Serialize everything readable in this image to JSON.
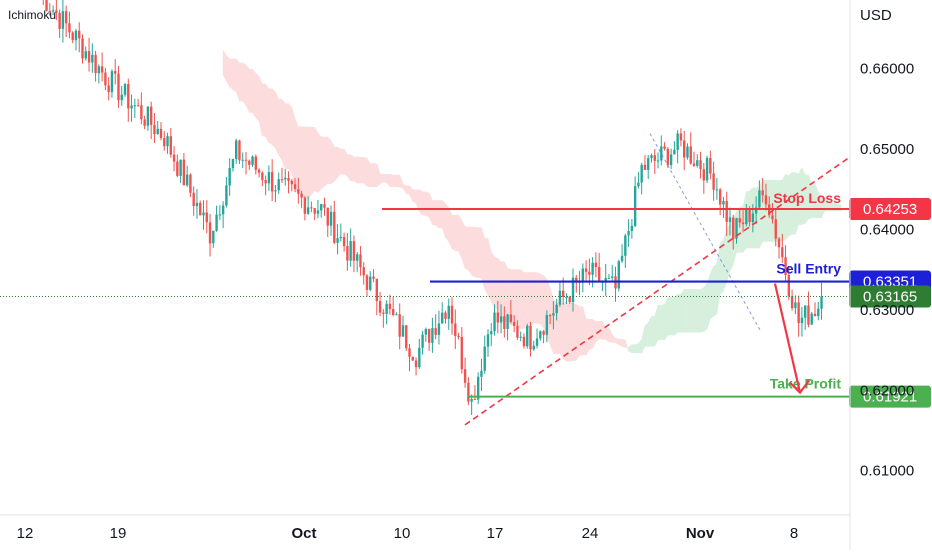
{
  "indicator_label": "Ichimoku",
  "currency": "USD",
  "colors": {
    "up": "#26a69a",
    "down": "#ef5350",
    "sell_entry": "#1e20d8",
    "stop_loss": "#f23645",
    "take_profit": "#4caf50",
    "current": "#2e7d32",
    "cloud_bear": "#fcdcdc",
    "cloud_bull": "#d7efdd"
  },
  "chart_data": {
    "type": "candlestick",
    "symbol_currency": "USD",
    "y_axis": {
      "range": [
        0.6045,
        0.6685
      ],
      "ticks": [
        {
          "value": 0.66,
          "label": "0.66000"
        },
        {
          "value": 0.65,
          "label": "0.65000"
        },
        {
          "value": 0.64,
          "label": "0.64000"
        },
        {
          "value": 0.63,
          "label": "0.63000"
        },
        {
          "value": 0.62,
          "label": "0.62000"
        },
        {
          "value": 0.61,
          "label": "0.61000"
        }
      ]
    },
    "x_axis": {
      "ticks": [
        {
          "label": "12",
          "bold": false
        },
        {
          "label": "19",
          "bold": false
        },
        {
          "label": "Oct",
          "bold": true
        },
        {
          "label": "10",
          "bold": false
        },
        {
          "label": "17",
          "bold": false
        },
        {
          "label": "24",
          "bold": false
        },
        {
          "label": "Nov",
          "bold": true
        },
        {
          "label": "8",
          "bold": false
        }
      ]
    },
    "levels": [
      {
        "name": "Stop Loss",
        "price": 0.64253,
        "label": "0.64253"
      },
      {
        "name": "Sell Entry",
        "price": 0.63351,
        "label": "0.63351"
      },
      {
        "name": "current",
        "price": 0.63165,
        "label": "0.63165"
      },
      {
        "name": "Take Profit",
        "price": 0.61921,
        "label": "0.61921"
      }
    ],
    "anchors": [
      [
        0,
        0.6695
      ],
      [
        20,
        0.659
      ],
      [
        38,
        0.6515
      ],
      [
        52,
        0.6395
      ],
      [
        60,
        0.6495
      ],
      [
        74,
        0.645
      ],
      [
        86,
        0.6425
      ],
      [
        102,
        0.6325
      ],
      [
        115,
        0.6245
      ],
      [
        125,
        0.631
      ],
      [
        132,
        0.6185
      ],
      [
        138,
        0.629
      ],
      [
        150,
        0.6265
      ],
      [
        160,
        0.6315
      ],
      [
        168,
        0.6345
      ],
      [
        176,
        0.6325
      ],
      [
        184,
        0.6475
      ],
      [
        196,
        0.6505
      ],
      [
        206,
        0.6465
      ],
      [
        212,
        0.6395
      ],
      [
        222,
        0.6445
      ],
      [
        232,
        0.6285
      ],
      [
        238,
        0.6305
      ]
    ]
  }
}
